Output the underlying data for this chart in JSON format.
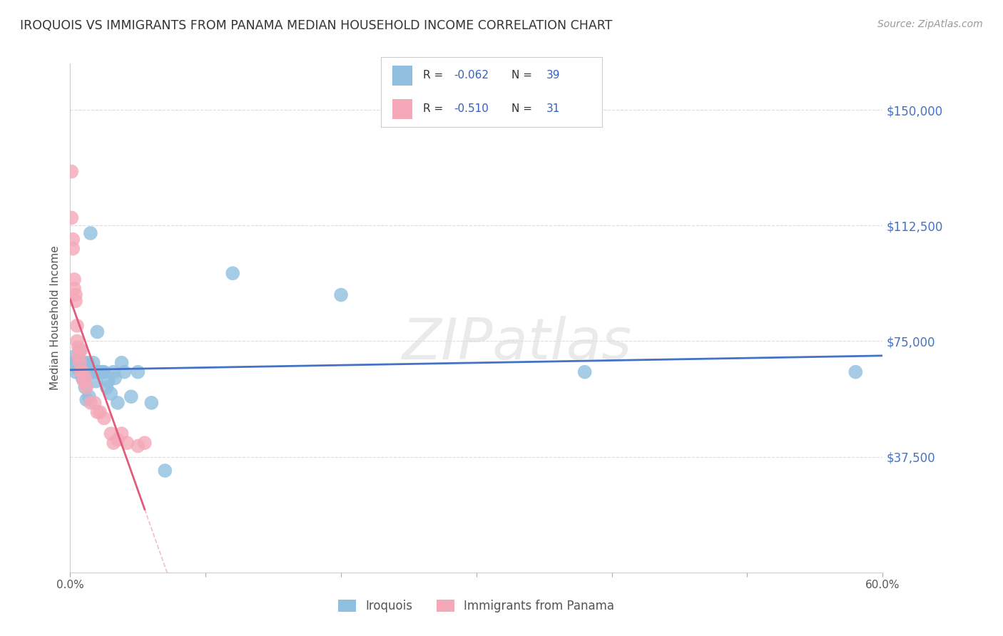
{
  "title": "IROQUOIS VS IMMIGRANTS FROM PANAMA MEDIAN HOUSEHOLD INCOME CORRELATION CHART",
  "source": "Source: ZipAtlas.com",
  "ylabel": "Median Household Income",
  "ytick_labels": [
    "$37,500",
    "$75,000",
    "$112,500",
    "$150,000"
  ],
  "ytick_values": [
    37500,
    75000,
    112500,
    150000
  ],
  "ylim": [
    0,
    165000
  ],
  "xlim": [
    0.0,
    0.6
  ],
  "legend_label1": "Iroquois",
  "legend_label2": "Immigrants from Panama",
  "R1": -0.062,
  "N1": 39,
  "R2": -0.51,
  "N2": 31,
  "color_blue": "#90bfdf",
  "color_pink": "#f4a8b8",
  "line_blue": "#4472c4",
  "line_pink": "#e05c7a",
  "iroquois_x": [
    0.002,
    0.003,
    0.004,
    0.005,
    0.006,
    0.007,
    0.008,
    0.009,
    0.01,
    0.011,
    0.012,
    0.013,
    0.014,
    0.015,
    0.016,
    0.017,
    0.018,
    0.019,
    0.02,
    0.021,
    0.022,
    0.024,
    0.025,
    0.027,
    0.028,
    0.03,
    0.032,
    0.033,
    0.035,
    0.038,
    0.04,
    0.045,
    0.05,
    0.06,
    0.07,
    0.12,
    0.2,
    0.38,
    0.58
  ],
  "iroquois_y": [
    68000,
    70000,
    65000,
    68000,
    66000,
    72000,
    65000,
    63000,
    68000,
    60000,
    56000,
    68000,
    57000,
    110000,
    65000,
    68000,
    65000,
    62000,
    78000,
    65000,
    65000,
    65000,
    65000,
    60000,
    62000,
    58000,
    65000,
    63000,
    55000,
    68000,
    65000,
    57000,
    65000,
    55000,
    33000,
    97000,
    90000,
    65000,
    65000
  ],
  "panama_x": [
    0.001,
    0.001,
    0.002,
    0.002,
    0.003,
    0.003,
    0.004,
    0.004,
    0.005,
    0.005,
    0.006,
    0.006,
    0.007,
    0.008,
    0.008,
    0.009,
    0.01,
    0.011,
    0.012,
    0.015,
    0.018,
    0.02,
    0.022,
    0.025,
    0.03,
    0.032,
    0.035,
    0.038,
    0.042,
    0.05,
    0.055
  ],
  "panama_y": [
    130000,
    115000,
    105000,
    108000,
    95000,
    92000,
    90000,
    88000,
    80000,
    75000,
    73000,
    70000,
    68000,
    72000,
    65000,
    65000,
    62000,
    63000,
    60000,
    55000,
    55000,
    52000,
    52000,
    50000,
    45000,
    42000,
    43000,
    45000,
    42000,
    41000,
    42000
  ],
  "background_color": "#ffffff",
  "grid_color": "#dddddd",
  "watermark": "ZIPatlas"
}
